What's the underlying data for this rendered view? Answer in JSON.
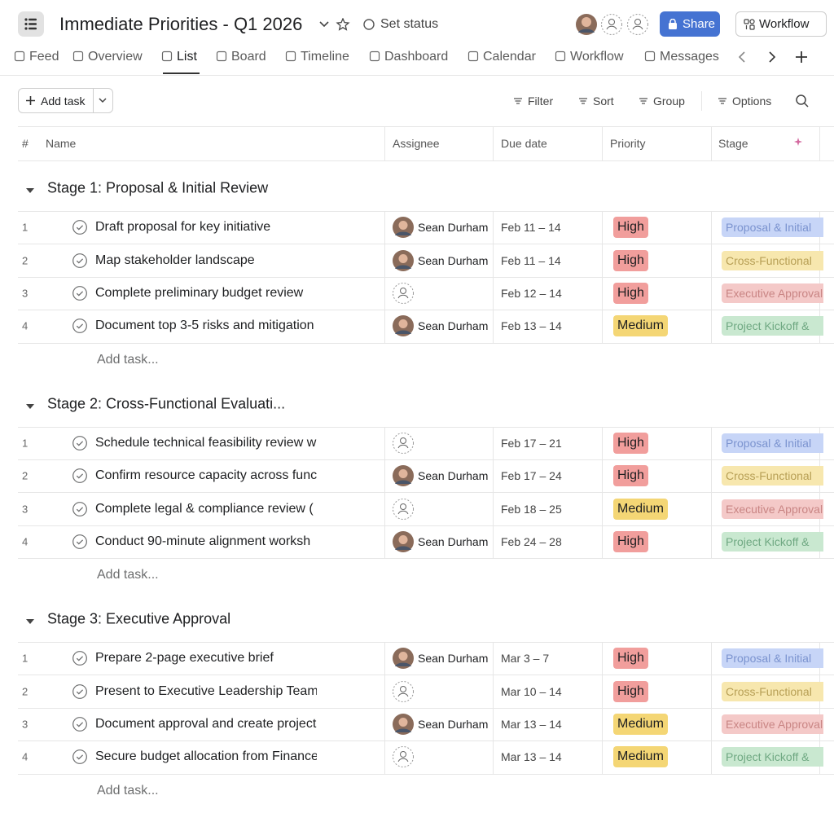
{
  "header": {
    "title": "Immediate Priorities - Q1 2026",
    "status": "Set status",
    "share": "Share",
    "workflow": "Workflow"
  },
  "tabs": [
    "Feed",
    "Overview",
    "List",
    "Board",
    "Timeline",
    "Dashboard",
    "Calendar",
    "Workflow",
    "Messages"
  ],
  "toolbar": {
    "add_task": "Add task",
    "filter": "Filter",
    "sort": "Sort",
    "group": "Group",
    "options": "Options"
  },
  "columns": [
    "#",
    "Name",
    "Assignee",
    "Due date",
    "Priority",
    "Stage"
  ],
  "sections": [
    {
      "title": "Stage 1: Proposal & Initial Review",
      "add_task": "Add task...",
      "tasks": [
        {
          "num": 1,
          "name": "Draft proposal for key initiative",
          "assignee": "Sean Durham",
          "due": "Feb 11 – 14",
          "priority": "High",
          "stage": "Proposal & Initial"
        },
        {
          "num": 2,
          "name": "Map stakeholder landscape",
          "assignee": "Sean Durham",
          "due": "Feb 11 – 14",
          "priority": "High",
          "stage": "Cross-Functional"
        },
        {
          "num": 3,
          "name": "Complete preliminary budget review",
          "due": "Feb 12 – 14",
          "priority": "High",
          "stage": "Executive Approval"
        },
        {
          "num": 4,
          "name": "Document top 3-5 risks and mitigation",
          "assignee": "Sean Durham",
          "due": "Feb 13 – 14",
          "priority": "Medium",
          "stage": "Project Kickoff &"
        }
      ]
    },
    {
      "title": "Stage 2: Cross-Functional Evaluati...",
      "add_task": "Add task...",
      "tasks": [
        {
          "num": 1,
          "name": "Schedule technical feasibility review w",
          "due": "Feb 17 – 21",
          "priority": "High",
          "stage": "Proposal & Initial"
        },
        {
          "num": 2,
          "name": "Confirm resource capacity across func",
          "assignee": "Sean Durham",
          "due": "Feb 17 – 24",
          "priority": "High",
          "stage": "Cross-Functional"
        },
        {
          "num": 3,
          "name": "Complete legal & compliance review (",
          "due": "Feb 18 – 25",
          "priority": "Medium",
          "stage": "Executive Approval"
        },
        {
          "num": 4,
          "name": "Conduct 90-minute alignment worksh",
          "assignee": "Sean Durham",
          "due": "Feb 24 – 28",
          "priority": "High",
          "stage": "Project Kickoff &"
        }
      ]
    },
    {
      "title": "Stage 3: Executive Approval",
      "add_task": "Add task...",
      "tasks": [
        {
          "num": 1,
          "name": "Prepare 2-page executive brief",
          "assignee": "Sean Durham",
          "due": "Mar 3 – 7",
          "priority": "High",
          "stage": "Proposal & Initial"
        },
        {
          "num": 2,
          "name": "Present to Executive Leadership Team",
          "due": "Mar 10 – 14",
          "priority": "High",
          "stage": "Cross-Functional"
        },
        {
          "num": 3,
          "name": "Document approval and create project",
          "assignee": "Sean Durham",
          "due": "Mar 13 – 14",
          "priority": "Medium",
          "stage": "Executive Approval"
        },
        {
          "num": 4,
          "name": "Secure budget allocation from Finance",
          "due": "Mar 13 – 14",
          "priority": "Medium",
          "stage": "Project Kickoff &"
        }
      ]
    }
  ]
}
